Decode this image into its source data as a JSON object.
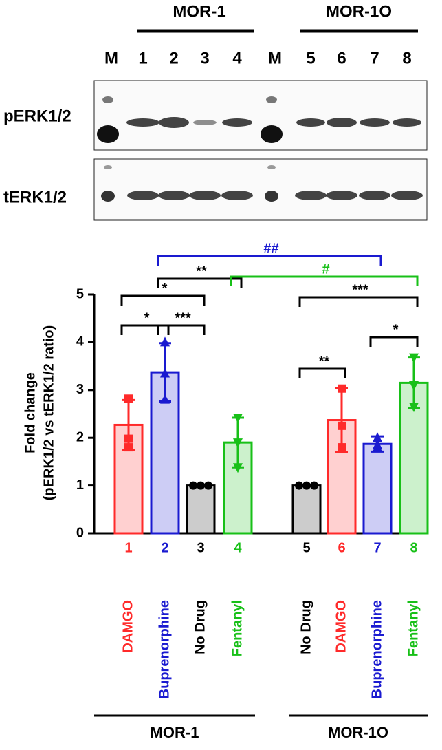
{
  "blot": {
    "group_labels": [
      "MOR-1",
      "MOR-1O"
    ],
    "lanes": [
      "M",
      "1",
      "2",
      "3",
      "4",
      "M",
      "5",
      "6",
      "7",
      "8"
    ],
    "rows": [
      "pERK1/2",
      "tERK1/2"
    ]
  },
  "chart_data": {
    "type": "bar",
    "y_label": [
      "Fold change",
      "(pERK1/2 vs tERK1/2 ratio)"
    ],
    "categories": [
      "1",
      "2",
      "3",
      "4",
      "5",
      "6",
      "7",
      "8"
    ],
    "drugs": [
      "DAMGO",
      "Buprenorphine",
      "No Drug",
      "Fentanyl",
      "No Drug",
      "DAMGO",
      "Buprenorphine",
      "Fentanyl"
    ],
    "colors": [
      "#ff2a2a",
      "#1a1ad0",
      "#000000",
      "#18c018",
      "#000000",
      "#ff2a2a",
      "#1a1ad0",
      "#18c018"
    ],
    "markers": [
      "square",
      "triangle",
      "circle",
      "triangle-down",
      "circle",
      "square",
      "triangle",
      "triangle-down"
    ],
    "values": [
      2.27,
      3.37,
      1.0,
      1.9,
      1.0,
      2.37,
      1.87,
      3.15
    ],
    "errors": [
      0.52,
      0.61,
      0,
      0.52,
      0,
      0.67,
      0.16,
      0.53
    ],
    "points": [
      [
        2.82,
        1.98,
        1.8
      ],
      [
        4.0,
        3.35,
        2.8
      ],
      [
        1,
        1,
        1
      ],
      [
        2.42,
        1.9,
        1.38
      ],
      [
        1,
        1,
        1
      ],
      [
        3.03,
        2.25,
        1.8
      ],
      [
        2.0,
        1.8,
        1.85
      ],
      [
        3.68,
        3.1,
        2.65
      ]
    ],
    "ylim": [
      0,
      5
    ],
    "yticks": [
      0,
      1,
      2,
      3,
      4,
      5
    ],
    "comparisons": [
      {
        "pair": [
          0,
          1
        ],
        "label": "*",
        "color": "#000000"
      },
      {
        "pair": [
          1,
          2
        ],
        "label": "***",
        "color": "#000000"
      },
      {
        "pair": [
          0,
          2
        ],
        "label": "*",
        "color": "#000000"
      },
      {
        "pair": [
          1,
          3
        ],
        "label": "**",
        "color": "#000000"
      },
      {
        "pair": [
          1,
          6
        ],
        "label": "##",
        "color": "#1a1ad0"
      },
      {
        "pair": [
          3,
          7
        ],
        "label": "#",
        "color": "#18c018"
      },
      {
        "pair": [
          4,
          7
        ],
        "label": "***",
        "color": "#000000"
      },
      {
        "pair": [
          6,
          7
        ],
        "label": "*",
        "color": "#000000"
      },
      {
        "pair": [
          4,
          5
        ],
        "label": "**",
        "color": "#000000"
      }
    ],
    "groups": [
      "MOR-1",
      "MOR-1O"
    ]
  }
}
